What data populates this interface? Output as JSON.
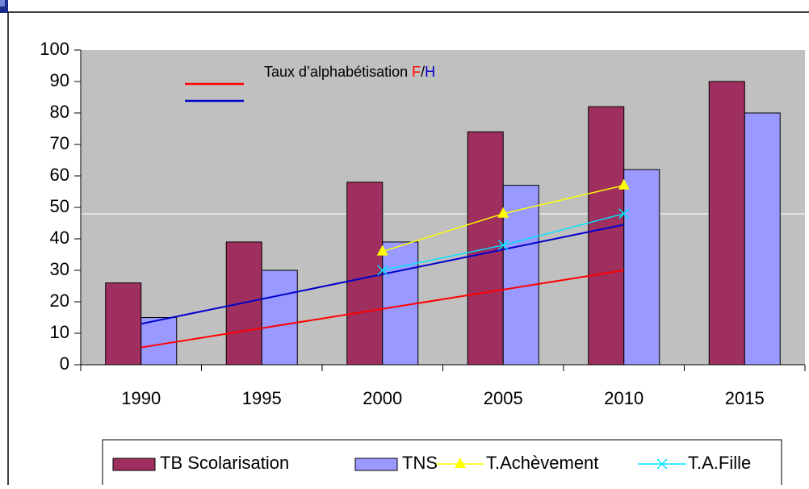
{
  "chart_data": {
    "type": "bar",
    "categories": [
      "1990",
      "1995",
      "2000",
      "2005",
      "2010",
      "2015"
    ],
    "ylim": [
      0,
      100
    ],
    "yticks": [
      0,
      10,
      20,
      30,
      40,
      50,
      60,
      70,
      80,
      90,
      100
    ],
    "series": [
      {
        "name": "TB Scolarisation",
        "type": "bar",
        "color": "#9e2f5e",
        "values": [
          26,
          39,
          58,
          74,
          82,
          90
        ]
      },
      {
        "name": "TNS",
        "type": "bar",
        "color": "#9999ff",
        "values": [
          15,
          30,
          39,
          57,
          62,
          80
        ]
      },
      {
        "name": "T.Achèvement",
        "type": "line",
        "marker": "triangle",
        "color": "#ffff00",
        "values": [
          null,
          null,
          36,
          48,
          57,
          null
        ]
      },
      {
        "name": "T.A.Fille",
        "type": "line",
        "marker": "x",
        "color": "#00e5ff",
        "values": [
          null,
          null,
          30,
          38,
          48,
          null
        ]
      }
    ],
    "trend_legend_text": "Taux d’alphabétisation",
    "trend_separator": "/",
    "trend_lines": [
      {
        "name": "F",
        "color": "#ff0000",
        "x": [
          "1990",
          "2010"
        ],
        "values": [
          5.5,
          30
        ]
      },
      {
        "name": "H",
        "color": "#0000cc",
        "x": [
          "1990",
          "2010"
        ],
        "values": [
          13,
          44.5
        ]
      }
    ]
  }
}
